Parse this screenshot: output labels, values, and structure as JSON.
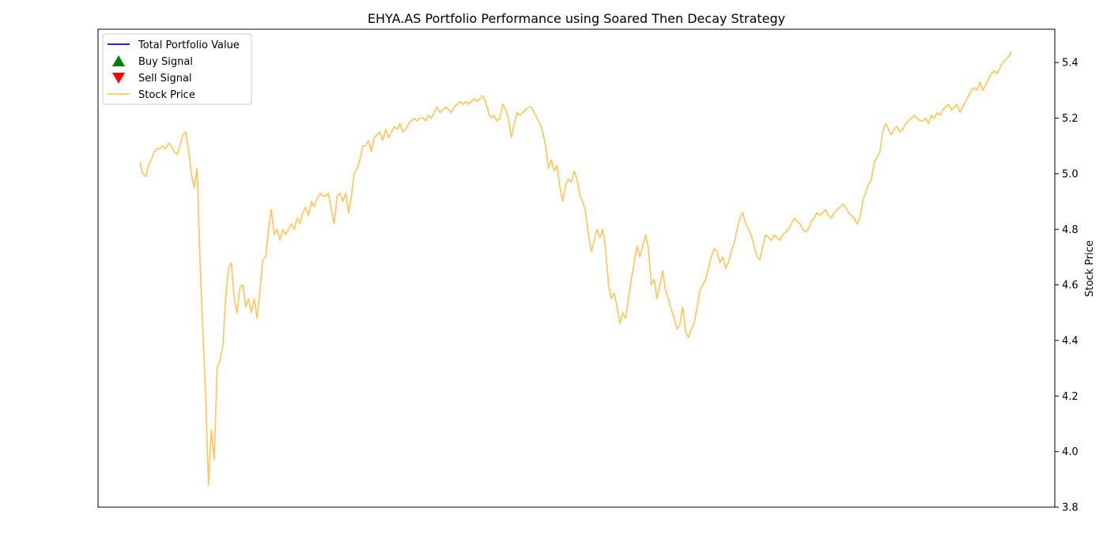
{
  "chart_data": {
    "type": "line",
    "title": "EHYA.AS Portfolio Performance using Soared Then Decay Strategy",
    "ylabel": "Stock Price",
    "ylim": [
      3.8,
      5.52
    ],
    "y_ticks": [
      "3.8",
      "4.0",
      "4.2",
      "4.4",
      "4.6",
      "4.8",
      "5.0",
      "5.2",
      "5.4"
    ],
    "x_ticks": [],
    "grid": false,
    "legend_position": "top-left",
    "legend": [
      {
        "label": "Total Portfolio Value",
        "marker": "line",
        "color": "#0000ff"
      },
      {
        "label": "Buy Signal",
        "marker": "triangle-up",
        "color": "#008000"
      },
      {
        "label": "Sell Signal",
        "marker": "triangle-down",
        "color": "#ff0000"
      },
      {
        "label": "Stock Price",
        "marker": "line",
        "color": "#ffc55a"
      }
    ],
    "series": [
      {
        "name": "Stock Price",
        "color": "#ffc55a",
        "values": [
          5.04,
          5.0,
          4.99,
          5.03,
          5.05,
          5.08,
          5.09,
          5.09,
          5.1,
          5.09,
          5.11,
          5.1,
          5.08,
          5.07,
          5.1,
          5.14,
          5.15,
          5.09,
          5.0,
          4.95,
          5.02,
          4.69,
          4.44,
          4.2,
          3.88,
          4.08,
          3.97,
          4.3,
          4.33,
          4.38,
          4.55,
          4.66,
          4.68,
          4.55,
          4.5,
          4.59,
          4.6,
          4.52,
          4.55,
          4.5,
          4.55,
          4.48,
          4.58,
          4.69,
          4.7,
          4.8,
          4.87,
          4.78,
          4.8,
          4.76,
          4.8,
          4.78,
          4.8,
          4.82,
          4.8,
          4.84,
          4.82,
          4.86,
          4.88,
          4.85,
          4.9,
          4.88,
          4.91,
          4.93,
          4.92,
          4.92,
          4.93,
          4.87,
          4.82,
          4.92,
          4.93,
          4.9,
          4.93,
          4.86,
          4.92,
          5.0,
          5.02,
          5.05,
          5.1,
          5.1,
          5.12,
          5.08,
          5.13,
          5.14,
          5.15,
          5.12,
          5.16,
          5.13,
          5.15,
          5.17,
          5.16,
          5.18,
          5.15,
          5.16,
          5.18,
          5.19,
          5.2,
          5.19,
          5.2,
          5.2,
          5.19,
          5.21,
          5.2,
          5.22,
          5.24,
          5.22,
          5.23,
          5.24,
          5.23,
          5.22,
          5.24,
          5.25,
          5.26,
          5.25,
          5.26,
          5.25,
          5.26,
          5.27,
          5.26,
          5.27,
          5.28,
          5.26,
          5.22,
          5.2,
          5.21,
          5.19,
          5.2,
          5.25,
          5.23,
          5.2,
          5.13,
          5.18,
          5.22,
          5.21,
          5.22,
          5.23,
          5.24,
          5.24,
          5.22,
          5.2,
          5.18,
          5.15,
          5.1,
          5.02,
          5.05,
          5.01,
          5.03,
          4.95,
          4.9,
          4.96,
          4.98,
          4.97,
          5.01,
          4.98,
          4.92,
          4.9,
          4.86,
          4.78,
          4.72,
          4.76,
          4.8,
          4.77,
          4.8,
          4.73,
          4.6,
          4.55,
          4.57,
          4.52,
          4.46,
          4.5,
          4.48,
          4.55,
          4.62,
          4.68,
          4.74,
          4.7,
          4.74,
          4.78,
          4.73,
          4.6,
          4.62,
          4.55,
          4.6,
          4.65,
          4.58,
          4.55,
          4.51,
          4.48,
          4.44,
          4.46,
          4.52,
          4.43,
          4.41,
          4.44,
          4.46,
          4.52,
          4.58,
          4.6,
          4.62,
          4.66,
          4.7,
          4.73,
          4.72,
          4.68,
          4.7,
          4.66,
          4.68,
          4.72,
          4.75,
          4.8,
          4.84,
          4.86,
          4.82,
          4.8,
          4.78,
          4.74,
          4.7,
          4.69,
          4.74,
          4.78,
          4.77,
          4.76,
          4.78,
          4.77,
          4.76,
          4.78,
          4.79,
          4.8,
          4.82,
          4.84,
          4.83,
          4.82,
          4.8,
          4.79,
          4.8,
          4.83,
          4.84,
          4.86,
          4.85,
          4.86,
          4.87,
          4.85,
          4.84,
          4.86,
          4.87,
          4.88,
          4.89,
          4.88,
          4.86,
          4.85,
          4.84,
          4.82,
          4.84,
          4.9,
          4.93,
          4.96,
          4.98,
          5.04,
          5.06,
          5.08,
          5.15,
          5.18,
          5.16,
          5.14,
          5.16,
          5.17,
          5.15,
          5.16,
          5.18,
          5.19,
          5.2,
          5.21,
          5.2,
          5.19,
          5.19,
          5.2,
          5.18,
          5.21,
          5.2,
          5.22,
          5.21,
          5.23,
          5.24,
          5.25,
          5.23,
          5.24,
          5.25,
          5.22,
          5.24,
          5.26,
          5.28,
          5.3,
          5.31,
          5.3,
          5.33,
          5.3,
          5.32,
          5.34,
          5.36,
          5.37,
          5.36,
          5.38,
          5.4,
          5.41,
          5.42,
          5.44
        ]
      }
    ]
  }
}
